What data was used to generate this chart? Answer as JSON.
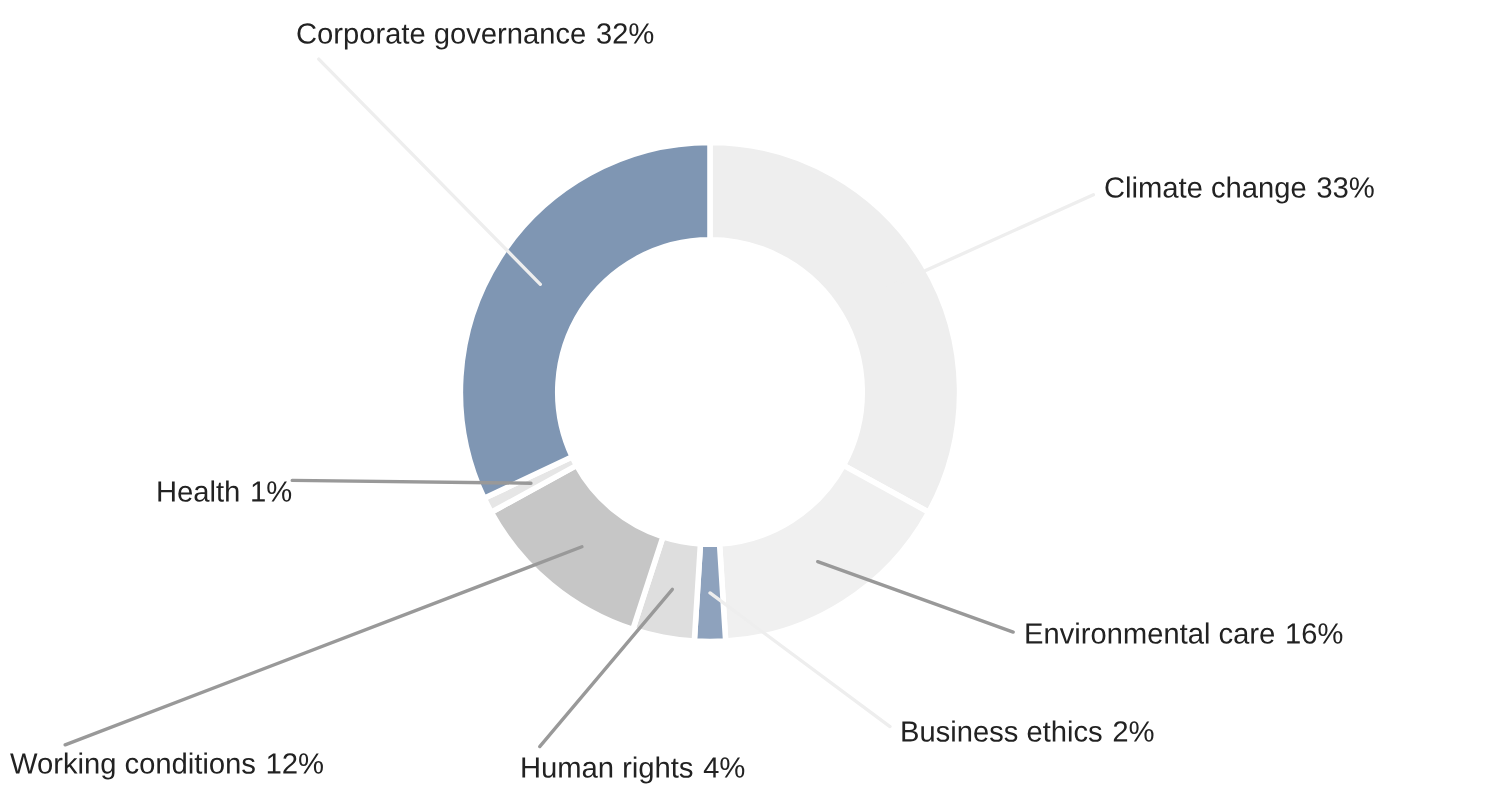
{
  "chart_data": {
    "type": "donut",
    "categories": [
      "Climate change",
      "Environmental care",
      "Business ethics",
      "Human rights",
      "Working conditions",
      "Health",
      "Corporate governance"
    ],
    "values": [
      33,
      16,
      2,
      4,
      12,
      1,
      32
    ],
    "colors": [
      "#eeeeee",
      "#f0f0f0",
      "#8ea2bd",
      "#dedede",
      "#c6c6c6",
      "#e6e6e6",
      "#7f96b3"
    ],
    "value_labels": [
      "33%",
      "16%",
      "2%",
      "4%",
      "12%",
      "1%",
      "32%"
    ]
  }
}
